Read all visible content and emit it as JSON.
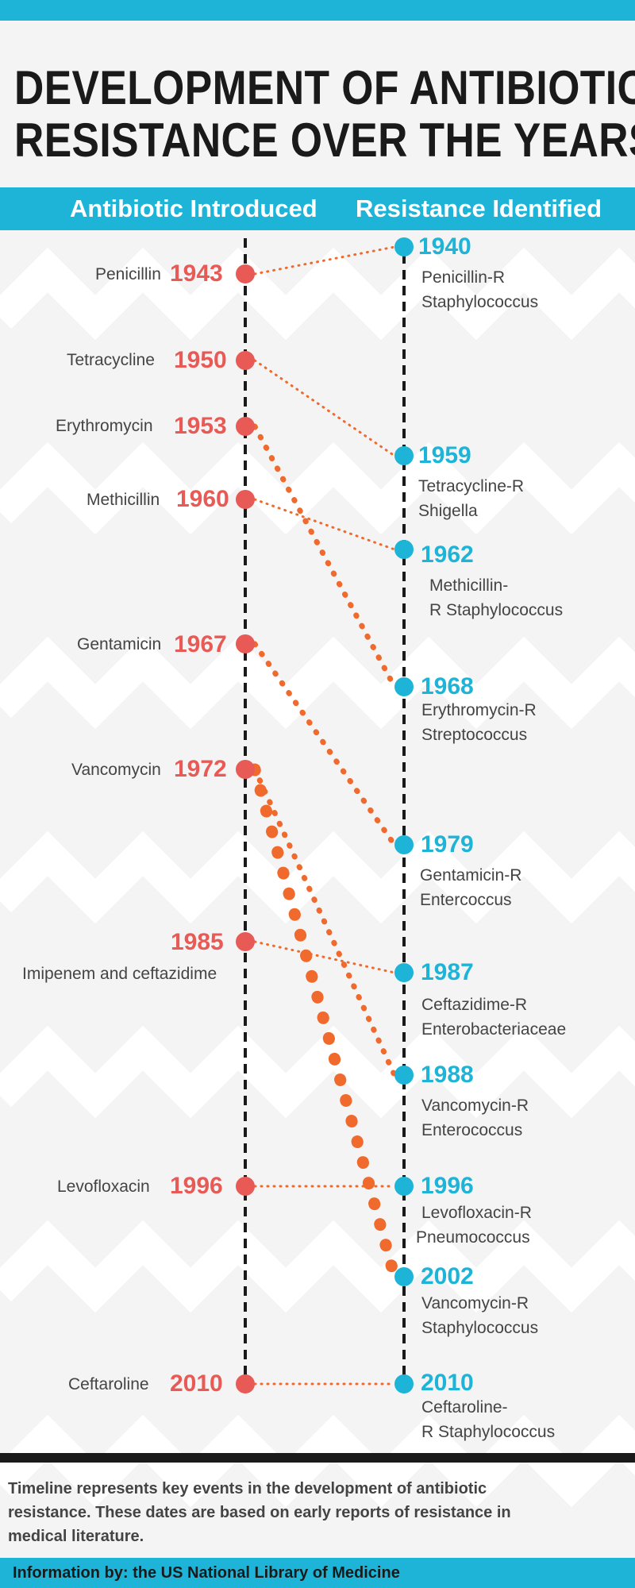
{
  "colors": {
    "accent_blue": "#1db4d7",
    "accent_red": "#e85a55",
    "connector_orange": "#ef6a2c",
    "axis_black": "#1a1a1a",
    "text_gray": "#444444",
    "background": "#f4f4f4",
    "chevron": "#ffffff"
  },
  "title": {
    "line1": "DEVELOPMENT OF ANTIBIOTIC",
    "line2": "RESISTANCE OVER THE YEARS"
  },
  "columns": {
    "left": "Antibiotic Introduced",
    "right": "Resistance Identified"
  },
  "chart_data": {
    "type": "timeline",
    "introduced": [
      {
        "drug": "Penicillin",
        "year": "1943"
      },
      {
        "drug": "Tetracycline",
        "year": "1950"
      },
      {
        "drug": "Erythromycin",
        "year": "1953"
      },
      {
        "drug": "Methicillin",
        "year": "1960"
      },
      {
        "drug": "Gentamicin",
        "year": "1967"
      },
      {
        "drug": "Vancomycin",
        "year": "1972"
      },
      {
        "drug": "Imipenem and ceftazidime",
        "year": "1985"
      },
      {
        "drug": "Levofloxacin",
        "year": "1996"
      },
      {
        "drug": "Ceftaroline",
        "year": "2010"
      }
    ],
    "identified": [
      {
        "year": "1940",
        "line1": "Penicillin-R",
        "line2": "Staphylococcus"
      },
      {
        "year": "1959",
        "line1": "Tetracycline-R",
        "line2": "Shigella"
      },
      {
        "year": "1962",
        "line1": "Methicillin-",
        "line2": "R Staphylococcus"
      },
      {
        "year": "1968",
        "line1": "Erythromycin-R",
        "line2": "Streptococcus"
      },
      {
        "year": "1979",
        "line1": "Gentamicin-R",
        "line2": "Entercoccus"
      },
      {
        "year": "1987",
        "line1": "Ceftazidime-R",
        "line2": "Enterobacteriaceae"
      },
      {
        "year": "1988",
        "line1": "Vancomycin-R",
        "line2": "Enterococcus"
      },
      {
        "year": "1996",
        "line1": "Levofloxacin-R",
        "line2": "Pneumococcus"
      },
      {
        "year": "2002",
        "line1": "Vancomycin-R",
        "line2": "Staphylococcus"
      },
      {
        "year": "2010",
        "line1": "Ceftaroline-",
        "line2": "R Staphylococcus"
      }
    ],
    "links": [
      {
        "from": "1943",
        "to": "1940",
        "weight": "light"
      },
      {
        "from": "1950",
        "to": "1959",
        "weight": "light"
      },
      {
        "from": "1953",
        "to": "1968",
        "weight": "medium"
      },
      {
        "from": "1960",
        "to": "1962",
        "weight": "light"
      },
      {
        "from": "1967",
        "to": "1979",
        "weight": "medium"
      },
      {
        "from": "1972",
        "to": "1988",
        "weight": "medium"
      },
      {
        "from": "1972",
        "to": "2002",
        "weight": "heavy"
      },
      {
        "from": "1985",
        "to": "1987",
        "weight": "light"
      },
      {
        "from": "1996",
        "to": "1996",
        "weight": "light"
      },
      {
        "from": "2010",
        "to": "2010",
        "weight": "light"
      }
    ]
  },
  "footer": {
    "note": "Timeline represents key events in the development of antibiotic resistance. These dates are based on early reports of resistance in medical literature.",
    "credit": "Information by: the US National Library of Medicine"
  }
}
